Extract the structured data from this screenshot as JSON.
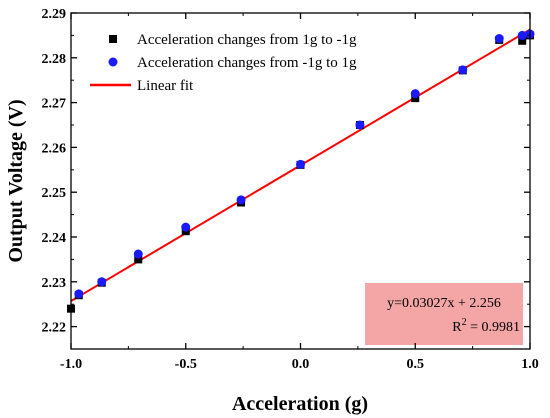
{
  "chart_data": {
    "type": "scatter",
    "xlabel": "Acceleration (g)",
    "ylabel": "Output Voltage (V)",
    "xlim": [
      -1.0,
      1.0
    ],
    "ylim": [
      2.215,
      2.29
    ],
    "x_ticks": [
      -1.0,
      -0.5,
      0.0,
      0.5,
      1.0
    ],
    "x_tick_labels": [
      "-1.0",
      "-0.5",
      "0.0",
      "0.5",
      "1.0"
    ],
    "y_ticks": [
      2.22,
      2.23,
      2.24,
      2.25,
      2.26,
      2.27,
      2.28,
      2.29
    ],
    "y_tick_labels": [
      "2.22",
      "2.23",
      "2.24",
      "2.25",
      "2.26",
      "2.27",
      "2.28",
      "2.29"
    ],
    "grid": false,
    "legend_position": "top-left",
    "series": [
      {
        "name": "Acceleration changes from 1g to -1g",
        "marker": "square",
        "color": "#000000",
        "x": [
          -1.0,
          -0.966,
          -0.866,
          -0.707,
          -0.5,
          -0.259,
          0.0,
          0.259,
          0.5,
          0.707,
          0.866,
          0.966,
          1.0
        ],
        "y": [
          2.224,
          2.227,
          2.2298,
          2.235,
          2.2413,
          2.2477,
          2.2561,
          2.265,
          2.271,
          2.2772,
          2.284,
          2.2838,
          2.285
        ]
      },
      {
        "name": "Acceleration changes from -1g to 1g",
        "marker": "circle",
        "color": "#1a1aff",
        "x": [
          -0.966,
          -0.866,
          -0.707,
          -0.5,
          -0.259,
          0.0,
          0.259,
          0.5,
          0.707,
          0.866,
          0.966,
          1.0
        ],
        "y": [
          2.2273,
          2.23,
          2.2362,
          2.2422,
          2.2483,
          2.2562,
          2.265,
          2.272,
          2.2773,
          2.2843,
          2.285,
          2.2853
        ]
      },
      {
        "name": "Linear fit",
        "type": "line",
        "color": "#ff0000",
        "x": [
          -1.0,
          1.0
        ],
        "y": [
          2.2257,
          2.2863
        ]
      }
    ],
    "annotation": {
      "equation": "y=0.03027x + 2.256",
      "r2_prefix": "R",
      "r2_exp": "2",
      "r2_value": " = 0.9981",
      "background": "#f4a6a6"
    },
    "colors": {
      "axis": "#000000",
      "fit_line": "#ff0000",
      "series1": "#000000",
      "series2": "#1a1aff"
    }
  }
}
